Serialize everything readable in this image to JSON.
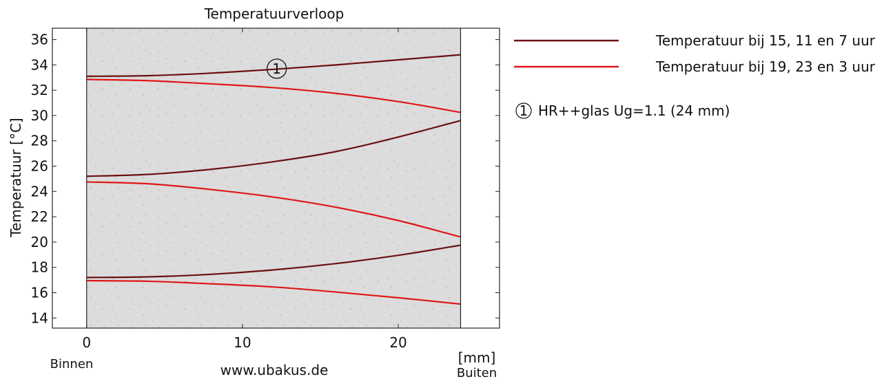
{
  "chart_data": {
    "type": "line",
    "title": "Temperatuurverloop",
    "ylabel": "Temperatuur [°C]",
    "xlabel": "[mm]",
    "x_unit_label": "[mm]",
    "left_label": "Binnen",
    "right_label": "Buiten",
    "footer": "www.ubakus.de",
    "xlim": [
      -2.2,
      26.5
    ],
    "ylim": [
      13.2,
      36.9
    ],
    "x_ticks": [
      0,
      10,
      20
    ],
    "y_ticks": [
      14,
      16,
      18,
      20,
      22,
      24,
      26,
      28,
      30,
      32,
      34,
      36
    ],
    "layer": {
      "x_start": 0,
      "x_end": 24,
      "number": "1",
      "label": "HR++glas Ug=1.1 (24 mm)",
      "fill_color": "#dcdcdc",
      "marker_x": 12.2,
      "marker_y": 33.7
    },
    "series": [
      {
        "name": "Temperatuur bij 15, 11 en 7 uur",
        "color": "#6b0f0f",
        "lines": [
          {
            "x": [
              0,
              4,
              8,
              12,
              16,
              20,
              24
            ],
            "y": [
              33.1,
              33.15,
              33.35,
              33.65,
              34.0,
              34.4,
              34.8
            ]
          },
          {
            "x": [
              0,
              4,
              8,
              12,
              16,
              20,
              24
            ],
            "y": [
              25.2,
              25.35,
              25.75,
              26.35,
              27.15,
              28.3,
              29.6
            ]
          },
          {
            "x": [
              0,
              4,
              8,
              12,
              16,
              20,
              24
            ],
            "y": [
              17.2,
              17.25,
              17.45,
              17.8,
              18.3,
              18.95,
              19.75
            ]
          }
        ]
      },
      {
        "name": "Temperatuur bij 19, 23 en 3 uur",
        "color": "#e01616",
        "lines": [
          {
            "x": [
              0,
              4,
              8,
              12,
              16,
              20,
              24
            ],
            "y": [
              32.85,
              32.75,
              32.5,
              32.2,
              31.75,
              31.1,
              30.25
            ]
          },
          {
            "x": [
              0,
              4,
              8,
              12,
              16,
              20,
              24
            ],
            "y": [
              24.75,
              24.6,
              24.15,
              23.55,
              22.75,
              21.7,
              20.4
            ]
          },
          {
            "x": [
              0,
              4,
              8,
              12,
              16,
              20,
              24
            ],
            "y": [
              16.95,
              16.9,
              16.7,
              16.45,
              16.05,
              15.6,
              15.1
            ]
          }
        ]
      }
    ],
    "legend_placement": "right",
    "grid": false
  }
}
